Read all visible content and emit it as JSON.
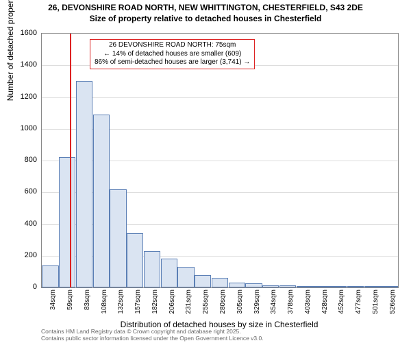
{
  "title_line1": "26, DEVONSHIRE ROAD NORTH, NEW WHITTINGTON, CHESTERFIELD, S43 2DE",
  "title_line2": "Size of property relative to detached houses in Chesterfield",
  "y_axis_label": "Number of detached properties",
  "x_axis_label": "Distribution of detached houses by size in Chesterfield",
  "footer_line1": "Contains HM Land Registry data © Crown copyright and database right 2025.",
  "footer_line2": "Contains public sector information licensed under the Open Government Licence v3.0.",
  "annotation": {
    "line1": "26 DEVONSHIRE ROAD NORTH: 75sqm",
    "line2": "← 14% of detached houses are smaller (609)",
    "line3": "86% of semi-detached houses are larger (3,741) →"
  },
  "chart": {
    "type": "histogram",
    "ylim": [
      0,
      1600
    ],
    "ytick_step": 200,
    "bar_fill": "#dae4f2",
    "bar_stroke": "#5b7fb5",
    "grid_color": "#dddddd",
    "border_color": "#888888",
    "marker_x_sqm": 75,
    "marker_color": "#dd2222",
    "x_start": 34,
    "x_step": 24.6,
    "x_labels": [
      "34sqm",
      "59sqm",
      "83sqm",
      "108sqm",
      "132sqm",
      "157sqm",
      "182sqm",
      "206sqm",
      "231sqm",
      "255sqm",
      "280sqm",
      "305sqm",
      "329sqm",
      "354sqm",
      "378sqm",
      "403sqm",
      "428sqm",
      "452sqm",
      "477sqm",
      "501sqm",
      "526sqm"
    ],
    "values": [
      140,
      820,
      1300,
      1090,
      620,
      340,
      230,
      180,
      130,
      80,
      60,
      30,
      25,
      15,
      12,
      8,
      5,
      5,
      3,
      3,
      2
    ]
  },
  "colors": {
    "background": "#ffffff",
    "text": "#000000",
    "footer_text": "#666666"
  },
  "fonts": {
    "title_pt": 12,
    "axis_label_pt": 12,
    "tick_pt": 10,
    "annotation_pt": 10,
    "footer_pt": 8.5
  }
}
